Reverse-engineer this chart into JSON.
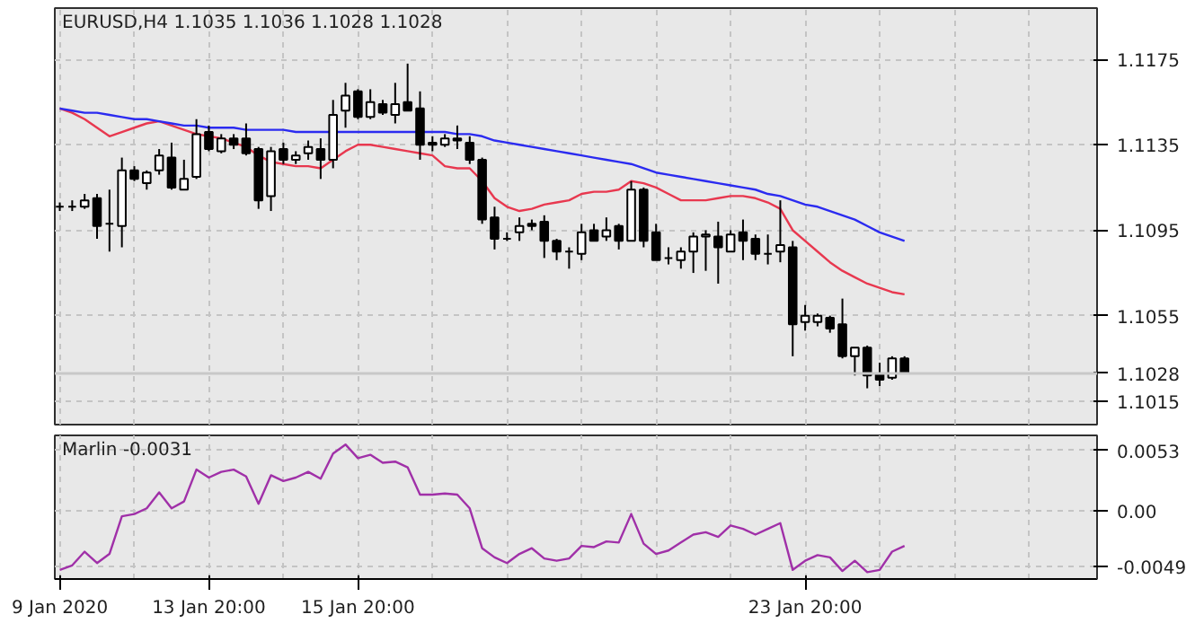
{
  "chart_data": [
    {
      "type": "candlestick",
      "title": "EURUSD,H4  1.1035 1.1036 1.1028 1.1028",
      "categories": [
        null,
        null,
        null,
        null,
        null,
        null,
        null,
        null,
        null,
        null,
        null,
        null,
        null,
        null,
        null,
        null,
        null,
        null,
        null,
        null,
        null,
        null,
        null,
        null,
        null,
        null,
        null,
        null,
        null,
        null,
        null,
        null,
        null,
        null,
        null,
        null,
        null,
        null,
        null,
        null,
        null,
        null,
        null,
        null,
        null,
        null,
        null,
        null,
        null,
        null,
        null,
        null,
        null,
        null,
        null,
        null,
        null,
        null,
        null,
        null,
        null,
        null,
        null,
        null,
        null,
        null,
        null,
        null,
        null
      ],
      "ohlc": [
        [
          1.1106,
          1.1108,
          1.1104,
          1.1106
        ],
        [
          1.1106,
          1.1109,
          1.1104,
          1.1106
        ],
        [
          1.1106,
          1.1112,
          1.1105,
          1.1109
        ],
        [
          1.111,
          1.1112,
          1.1091,
          1.1097
        ],
        [
          1.1098,
          1.1114,
          1.1085,
          1.1098
        ],
        [
          1.1097,
          1.1129,
          1.1087,
          1.1123
        ],
        [
          1.1123,
          1.1125,
          1.1118,
          1.1119
        ],
        [
          1.1117,
          1.1123,
          1.1114,
          1.1122
        ],
        [
          1.1123,
          1.1133,
          1.1121,
          1.113
        ],
        [
          1.1129,
          1.1136,
          1.1114,
          1.1115
        ],
        [
          1.1114,
          1.1128,
          1.1114,
          1.1119
        ],
        [
          1.112,
          1.1147,
          1.1119,
          1.114
        ],
        [
          1.1141,
          1.1144,
          1.1132,
          1.1133
        ],
        [
          1.1132,
          1.114,
          1.1131,
          1.1138
        ],
        [
          1.1138,
          1.114,
          1.1133,
          1.1135
        ],
        [
          1.1138,
          1.1145,
          1.113,
          1.1131
        ],
        [
          1.1133,
          1.1134,
          1.1105,
          1.1109
        ],
        [
          1.1111,
          1.1134,
          1.1104,
          1.1132
        ],
        [
          1.1133,
          1.1136,
          1.1126,
          1.1128
        ],
        [
          1.1128,
          1.1132,
          1.1126,
          1.113
        ],
        [
          1.1131,
          1.1137,
          1.1128,
          1.1134
        ],
        [
          1.1133,
          1.1138,
          1.1119,
          1.1128
        ],
        [
          1.1128,
          1.1156,
          1.1124,
          1.1149
        ],
        [
          1.1151,
          1.1164,
          1.1143,
          1.1158
        ],
        [
          1.116,
          1.1161,
          1.1147,
          1.1148
        ],
        [
          1.1148,
          1.1161,
          1.1147,
          1.1155
        ],
        [
          1.1154,
          1.1156,
          1.1149,
          1.115
        ],
        [
          1.1149,
          1.1164,
          1.1145,
          1.1154
        ],
        [
          1.1155,
          1.1173,
          1.1151,
          1.1151
        ],
        [
          1.1152,
          1.116,
          1.1128,
          1.1135
        ],
        [
          1.1136,
          1.1139,
          1.1132,
          1.1135
        ],
        [
          1.1135,
          1.114,
          1.1134,
          1.1138
        ],
        [
          1.1138,
          1.1144,
          1.1133,
          1.1137
        ],
        [
          1.1136,
          1.1139,
          1.1126,
          1.1128
        ],
        [
          1.1128,
          1.1129,
          1.1098,
          1.11
        ],
        [
          1.1101,
          1.1106,
          1.1086,
          1.1091
        ],
        [
          1.1091,
          1.1094,
          1.109,
          1.1091
        ],
        [
          1.1094,
          1.1101,
          1.109,
          1.1097
        ],
        [
          1.1098,
          1.11,
          1.1095,
          1.1097
        ],
        [
          1.1099,
          1.1102,
          1.1082,
          1.109
        ],
        [
          1.109,
          1.1091,
          1.1081,
          1.1085
        ],
        [
          1.1085,
          1.1087,
          1.1077,
          1.1085
        ],
        [
          1.1084,
          1.1098,
          1.1081,
          1.1094
        ],
        [
          1.1095,
          1.1098,
          1.109,
          1.109
        ],
        [
          1.1092,
          1.1101,
          1.109,
          1.1095
        ],
        [
          1.1097,
          1.1098,
          1.1086,
          1.109
        ],
        [
          1.109,
          1.1118,
          1.109,
          1.1114
        ],
        [
          1.1114,
          1.1115,
          1.1087,
          1.109
        ],
        [
          1.1094,
          1.1098,
          1.1081,
          1.1081
        ],
        [
          1.1082,
          1.1087,
          1.1079,
          1.1082
        ],
        [
          1.1081,
          1.1087,
          1.1077,
          1.1085
        ],
        [
          1.1085,
          1.1094,
          1.1075,
          1.1092
        ],
        [
          1.1092,
          1.1095,
          1.1076,
          1.1093
        ],
        [
          1.1092,
          1.1099,
          1.107,
          1.1087
        ],
        [
          1.1085,
          1.1095,
          1.1085,
          1.1093
        ],
        [
          1.1094,
          1.11,
          1.1081,
          1.109
        ],
        [
          1.1091,
          1.1093,
          1.1081,
          1.1084
        ],
        [
          1.1084,
          1.1093,
          1.1079,
          1.1084
        ],
        [
          1.1085,
          1.1109,
          1.108,
          1.1088
        ],
        [
          1.1087,
          1.109,
          1.1036,
          1.1051
        ],
        [
          1.1052,
          1.106,
          1.1048,
          1.1055
        ],
        [
          1.1052,
          1.1056,
          1.105,
          1.1055
        ],
        [
          1.1054,
          1.1055,
          1.1047,
          1.1049
        ],
        [
          1.1051,
          1.1063,
          1.1035,
          1.1036
        ],
        [
          1.1036,
          1.104,
          1.1027,
          1.104
        ],
        [
          1.104,
          1.1041,
          1.1021,
          1.1027
        ],
        [
          1.1028,
          1.1033,
          1.1022,
          1.1025
        ],
        [
          1.1026,
          1.1036,
          1.1025,
          1.1035
        ],
        [
          1.1035,
          1.1036,
          1.1028,
          1.1028
        ]
      ],
      "series": [
        {
          "type": "line",
          "color": "#e8384f",
          "values": [
            1.1152,
            1.115,
            1.1147,
            1.1143,
            1.1139,
            1.1141,
            1.1143,
            1.1145,
            1.1146,
            1.1144,
            1.1142,
            1.114,
            1.1139,
            1.1138,
            1.1136,
            1.1134,
            1.113,
            1.1127,
            1.1126,
            1.1125,
            1.1125,
            1.1124,
            1.1128,
            1.1132,
            1.1135,
            1.1135,
            1.1134,
            1.1133,
            1.1132,
            1.1131,
            1.113,
            1.1125,
            1.1124,
            1.1124,
            1.1118,
            1.111,
            1.1106,
            1.1104,
            1.1105,
            1.1107,
            1.1108,
            1.1109,
            1.1112,
            1.1113,
            1.1113,
            1.1114,
            1.1118,
            1.1117,
            1.1115,
            1.1112,
            1.1109,
            1.1109,
            1.1109,
            1.111,
            1.1111,
            1.1111,
            1.111,
            1.1108,
            1.1105,
            1.1095,
            1.109,
            1.1085,
            1.108,
            1.1076,
            1.1073,
            1.107,
            1.1068,
            1.1066,
            1.1065
          ]
        },
        {
          "type": "line",
          "color": "#2b2bf0",
          "values": [
            1.1152,
            1.1151,
            1.115,
            1.115,
            1.1149,
            1.1148,
            1.1147,
            1.1147,
            1.1146,
            1.1145,
            1.1144,
            1.1144,
            1.1143,
            1.1143,
            1.1143,
            1.1142,
            1.1142,
            1.1142,
            1.1142,
            1.1141,
            1.1141,
            1.1141,
            1.1141,
            1.1141,
            1.1141,
            1.1141,
            1.1141,
            1.1141,
            1.1141,
            1.1141,
            1.1141,
            1.1141,
            1.114,
            1.114,
            1.1139,
            1.1137,
            1.1136,
            1.1135,
            1.1134,
            1.1133,
            1.1132,
            1.1131,
            1.113,
            1.1129,
            1.1128,
            1.1127,
            1.1126,
            1.1124,
            1.1122,
            1.1121,
            1.112,
            1.1119,
            1.1118,
            1.1117,
            1.1116,
            1.1115,
            1.1114,
            1.1112,
            1.1111,
            1.1109,
            1.1107,
            1.1106,
            1.1104,
            1.1102,
            1.11,
            1.1097,
            1.1094,
            1.1092,
            1.109
          ]
        }
      ],
      "ylim": [
        1.1004,
        1.1199
      ],
      "yticks": [
        1.1015,
        1.1055,
        1.1095,
        1.1135,
        1.1175
      ],
      "ref_lines": [
        {
          "axis": "y",
          "value": 1.1028,
          "label": "1.1028",
          "color": "#c8c8c8"
        }
      ],
      "grid": true,
      "tick_labels": "y"
    },
    {
      "type": "line",
      "title": "Marlin -0.0031",
      "categories": [
        "9 Jan 2020",
        null,
        null,
        null,
        null,
        null,
        null,
        null,
        null,
        null,
        null,
        null,
        "13 Jan 20:00",
        null,
        null,
        null,
        null,
        null,
        null,
        null,
        null,
        null,
        null,
        null,
        "15 Jan 20:00",
        null,
        null,
        null,
        null,
        null,
        null,
        null,
        null,
        null,
        null,
        null,
        null,
        null,
        null,
        null,
        null,
        null,
        null,
        null,
        null,
        null,
        null,
        null,
        null,
        null,
        null,
        null,
        null,
        null,
        null,
        null,
        null,
        null,
        null,
        null,
        "23 Jan 20:00",
        null,
        null,
        null,
        null,
        null,
        null,
        null,
        null
      ],
      "series": [
        {
          "color": "#a030a8",
          "values": [
            -0.0052,
            -0.0048,
            -0.0036,
            -0.0046,
            -0.0038,
            -0.0005,
            -0.0003,
            0.0002,
            0.0016,
            0.0002,
            0.0008,
            0.0036,
            0.0029,
            0.0034,
            0.0036,
            0.003,
            0.0006,
            0.0031,
            0.0026,
            0.0029,
            0.0034,
            0.0028,
            0.005,
            0.0058,
            0.0046,
            0.0049,
            0.0042,
            0.0043,
            0.0038,
            0.0014,
            0.0014,
            0.0015,
            0.0014,
            0.0002,
            -0.0033,
            -0.0041,
            -0.0046,
            -0.0038,
            -0.0033,
            -0.0042,
            -0.0044,
            -0.0042,
            -0.0031,
            -0.0032,
            -0.0027,
            -0.0028,
            -0.0003,
            -0.0029,
            -0.0038,
            -0.0035,
            -0.0028,
            -0.0021,
            -0.0019,
            -0.0023,
            -0.0013,
            -0.0016,
            -0.0021,
            -0.0016,
            -0.0011,
            -0.0052,
            -0.0044,
            -0.0039,
            -0.0041,
            -0.0053,
            -0.0044,
            -0.0054,
            -0.0052,
            -0.0036,
            -0.0031
          ]
        }
      ],
      "ylim": [
        -0.006,
        0.0066
      ],
      "yticks": [
        0.0053,
        {
          "value": 0,
          "label": "0.00"
        },
        -0.0049
      ],
      "grid": true
    }
  ]
}
